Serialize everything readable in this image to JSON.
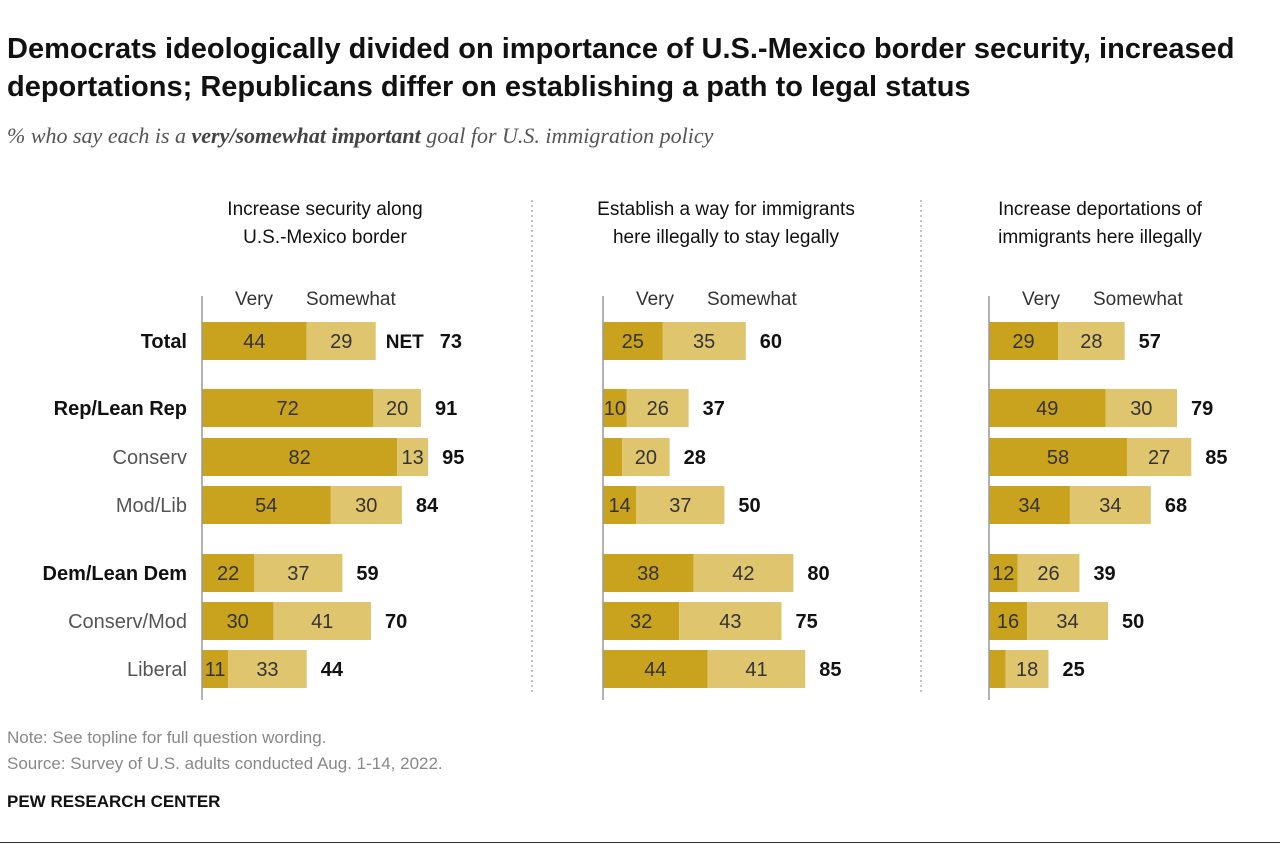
{
  "title": "Democrats ideologically divided on importance of U.S.-Mexico border security, increased deportations; Republicans differ on establishing a path to legal status",
  "subtitle": {
    "pre": "% who say each is a ",
    "bold": "very/somewhat important",
    "post": " goal for U.S. immigration policy"
  },
  "note": "Note: See topline for full question wording.",
  "source": "Source: Survey of U.S. adults conducted Aug. 1-14, 2022.",
  "brand": "PEW RESEARCH CENTER",
  "colors": {
    "very": "#C9A21E",
    "somewhat": "#DFC56E"
  },
  "chart_data": {
    "type": "bar",
    "stacked": true,
    "orientation": "horizontal",
    "categories": [
      "Total",
      "Rep/Lean Rep",
      "Conserv",
      "Mod/Lib",
      "Dem/Lean Dem",
      "Conserv/Mod",
      "Liberal"
    ],
    "bold_categories": [
      "Total",
      "Rep/Lean Rep",
      "Dem/Lean Dem"
    ],
    "series_names": [
      "Very",
      "Somewhat"
    ],
    "net_prefix": "NET",
    "panels": [
      {
        "title": [
          "Increase security along",
          "U.S.-Mexico border"
        ],
        "very": [
          44,
          72,
          82,
          54,
          22,
          30,
          11
        ],
        "somewhat": [
          29,
          20,
          13,
          30,
          37,
          41,
          33
        ],
        "net": [
          73,
          91,
          95,
          84,
          59,
          70,
          44
        ]
      },
      {
        "title": [
          "Establish a way for immigrants",
          "here illegally to stay legally"
        ],
        "very": [
          25,
          10,
          8,
          14,
          38,
          32,
          44
        ],
        "somewhat": [
          35,
          26,
          20,
          37,
          42,
          43,
          41
        ],
        "net": [
          60,
          37,
          28,
          50,
          80,
          75,
          85
        ]
      },
      {
        "title": [
          "Increase deportations of",
          "immigrants here illegally"
        ],
        "very": [
          29,
          49,
          58,
          34,
          12,
          16,
          7
        ],
        "somewhat": [
          28,
          30,
          27,
          34,
          26,
          34,
          18
        ],
        "net": [
          57,
          79,
          85,
          68,
          39,
          50,
          25
        ]
      }
    ]
  }
}
